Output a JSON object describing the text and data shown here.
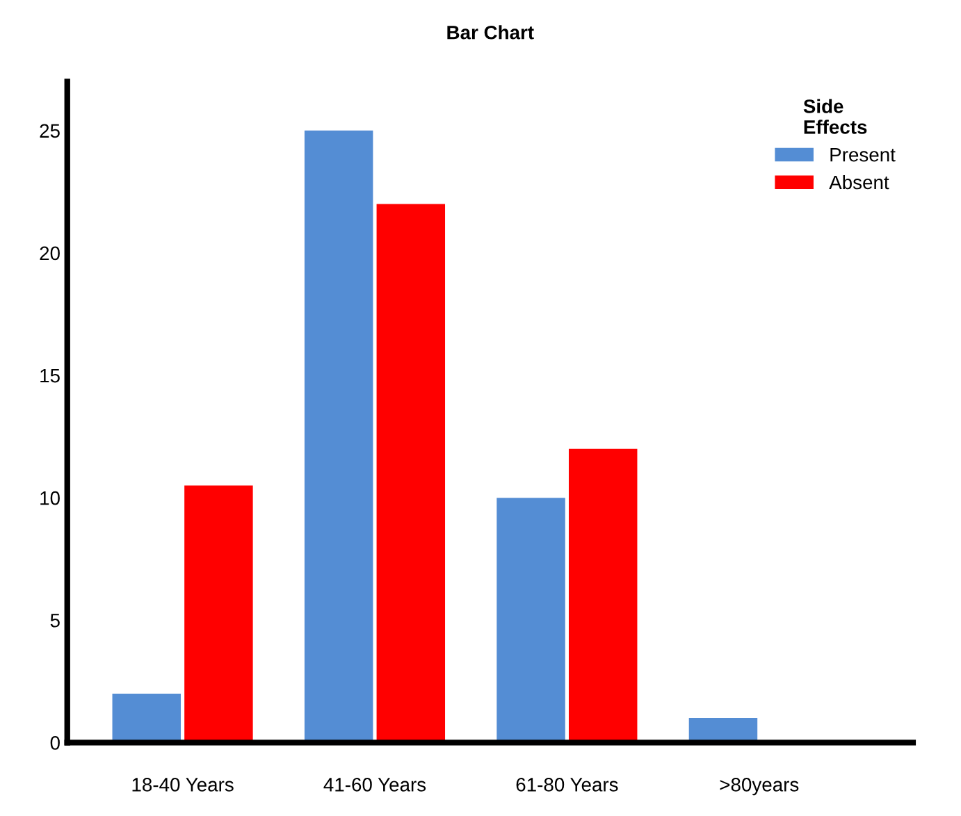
{
  "chart_data": {
    "type": "bar",
    "title": "Bar Chart",
    "categories": [
      "18-40 Years",
      "41-60 Years",
      "61-80 Years",
      ">80years"
    ],
    "series": [
      {
        "name": "Present",
        "color": "#548dd4",
        "values": [
          2,
          25,
          10,
          1
        ]
      },
      {
        "name": "Absent",
        "color": "#ff0000",
        "values": [
          10.5,
          22,
          12,
          null
        ]
      }
    ],
    "legend_title": "Side\nEffects",
    "legend": "top right",
    "ylim": [
      0,
      27
    ],
    "yticks": [
      0,
      5,
      10,
      15,
      20,
      25
    ],
    "grid": false
  }
}
